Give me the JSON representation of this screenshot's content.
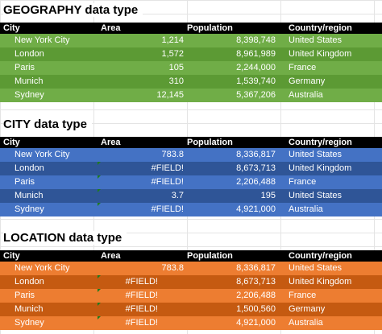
{
  "sections": [
    {
      "title": "GEOGRAPHY data type",
      "header": [
        "City",
        "Area",
        "Population",
        "Country/region"
      ],
      "rows": [
        [
          "New York City",
          "1,214",
          "8,398,748",
          "United States"
        ],
        [
          "London",
          "1,572",
          "8,961,989",
          "United Kingdom"
        ],
        [
          "Paris",
          "105",
          "2,244,000",
          "France"
        ],
        [
          "Munich",
          "310",
          "1,539,740",
          "Germany"
        ],
        [
          "Sydney",
          "12,145",
          "5,367,206",
          "Australia"
        ]
      ]
    },
    {
      "title": "CITY data type",
      "header": [
        "City",
        "Area",
        "Population",
        "Country/region"
      ],
      "rows": [
        [
          "New York City",
          "783.8",
          "8,336,817",
          "United States"
        ],
        [
          "London",
          "#FIELD!",
          "8,673,713",
          "United Kingdom"
        ],
        [
          "Paris",
          "#FIELD!",
          "2,206,488",
          "France"
        ],
        [
          "Munich",
          "3.7",
          "195",
          "United States"
        ],
        [
          "Sydney",
          "#FIELD!",
          "4,921,000",
          "Australia"
        ]
      ]
    },
    {
      "title": "LOCATION data type",
      "header": [
        "City",
        "Area",
        "Population",
        "Country/region"
      ],
      "rows": [
        [
          "New York City",
          "783.8",
          "8,336,817",
          "United States"
        ],
        [
          "London",
          "#FIELD!",
          "8,673,713",
          "United Kingdom"
        ],
        [
          "Paris",
          "#FIELD!",
          "2,206,488",
          "France"
        ],
        [
          "Munich",
          "#FIELD!",
          "1,500,560",
          "Germany"
        ],
        [
          "Sydney",
          "#FIELD!",
          "4,921,000",
          "Australia"
        ]
      ]
    }
  ]
}
